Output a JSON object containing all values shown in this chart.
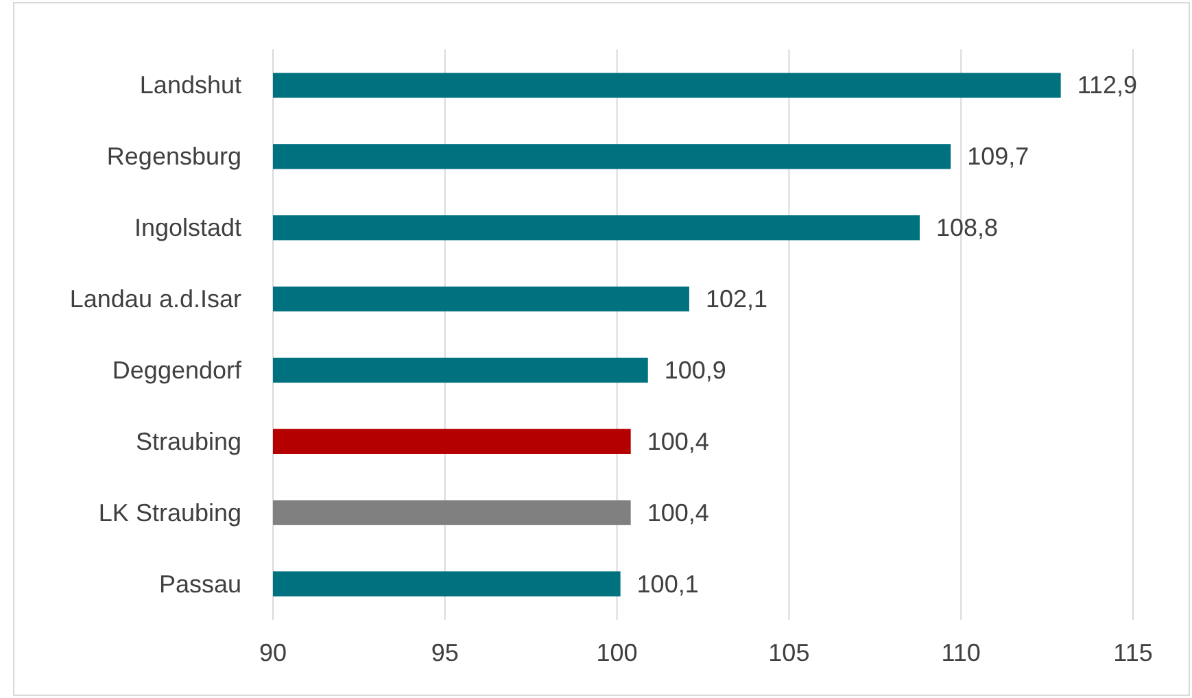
{
  "chart_data": {
    "type": "bar",
    "orientation": "horizontal",
    "categories": [
      "Landshut",
      "Regensburg",
      "Ingolstadt",
      "Landau a.d.Isar",
      "Deggendorf",
      "Straubing",
      "LK Straubing",
      "Passau"
    ],
    "values": [
      112.9,
      109.7,
      108.8,
      102.1,
      100.9,
      100.4,
      100.4,
      100.1
    ],
    "colors": [
      "#00717f",
      "#00717f",
      "#00717f",
      "#00717f",
      "#00717f",
      "#b40000",
      "#808080",
      "#00717f"
    ],
    "value_labels": [
      "112,9",
      "109,7",
      "108,8",
      "102,1",
      "100,9",
      "100,4",
      "100,4",
      "100,1"
    ],
    "xlim": [
      90,
      115
    ],
    "xticks": [
      90,
      95,
      100,
      105,
      110,
      115
    ],
    "grid": "x"
  }
}
